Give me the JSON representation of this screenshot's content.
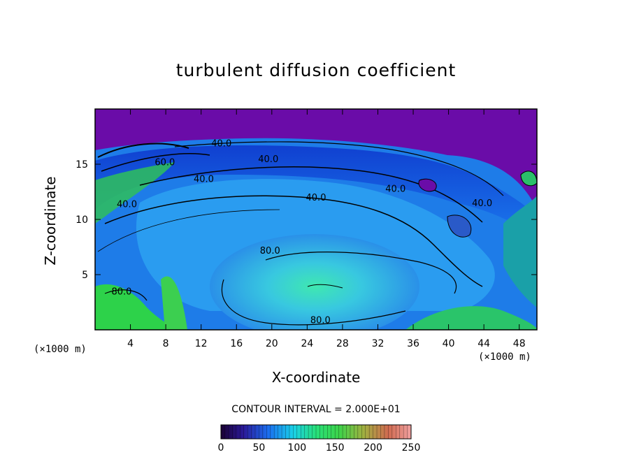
{
  "chart_data": {
    "type": "heatmap",
    "title": "turbulent diffusion coefficient",
    "xlabel": "X-coordinate",
    "ylabel": "Z-coordinate",
    "x_unit": "(×1000 m)",
    "z_unit": "(×1000 m)",
    "xlim": [
      0,
      50
    ],
    "ylim": [
      0,
      20
    ],
    "x_ticks": [
      4,
      8,
      12,
      16,
      20,
      24,
      28,
      32,
      36,
      40,
      44,
      48
    ],
    "y_ticks": [
      5,
      10,
      15
    ],
    "contour_interval_text": "CONTOUR INTERVAL = 2.000E+01",
    "contour_labels": [
      {
        "text": "40.0",
        "x": 14.3,
        "z": 16.6
      },
      {
        "text": "40.0",
        "x": 19.6,
        "z": 15.2
      },
      {
        "text": "60.0",
        "x": 7.9,
        "z": 14.9
      },
      {
        "text": "40.0",
        "x": 12.3,
        "z": 13.4
      },
      {
        "text": "40.0",
        "x": 25.0,
        "z": 11.7
      },
      {
        "text": "40.0",
        "x": 34.0,
        "z": 12.5
      },
      {
        "text": "40.0",
        "x": 43.8,
        "z": 11.2
      },
      {
        "text": "40.0",
        "x": 3.6,
        "z": 11.1
      },
      {
        "text": "80.0",
        "x": 19.8,
        "z": 6.9
      },
      {
        "text": "80.0",
        "x": 3.0,
        "z": 3.2
      },
      {
        "text": "80.0",
        "x": 25.5,
        "z": 0.6
      }
    ],
    "colorbar": {
      "min": 0,
      "max": 250,
      "ticks": [
        0,
        50,
        100,
        150,
        200,
        250
      ]
    }
  }
}
